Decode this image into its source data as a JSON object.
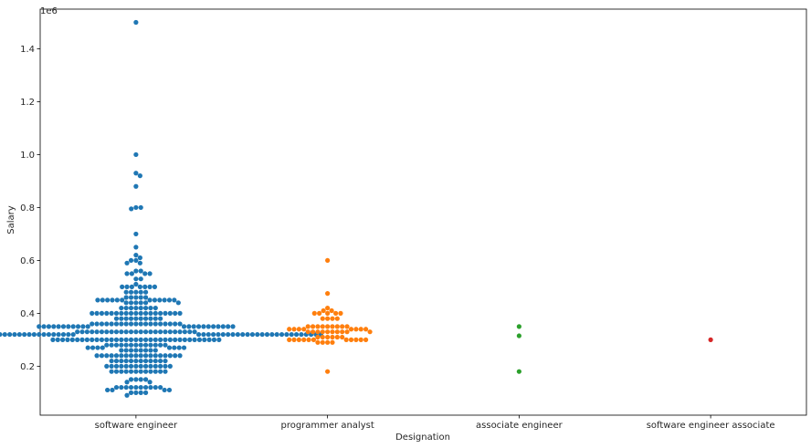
{
  "chart_data": {
    "type": "scatter",
    "subtype": "swarm",
    "title": "",
    "xlabel": "Designation",
    "ylabel": "Salary",
    "y_offset_label": "1e6",
    "ylim": [
      15000,
      1550000
    ],
    "yticks": [
      {
        "value": 200000,
        "label": "0.2"
      },
      {
        "value": 400000,
        "label": "0.4"
      },
      {
        "value": 600000,
        "label": "0.6"
      },
      {
        "value": 800000,
        "label": "0.8"
      },
      {
        "value": 1000000,
        "label": "1.0"
      },
      {
        "value": 1200000,
        "label": "1.2"
      },
      {
        "value": 1400000,
        "label": "1.4"
      }
    ],
    "grid": false,
    "legend": "none",
    "categories": [
      "software engineer",
      "programmer analyst",
      "associate engineer",
      "software engineer associate"
    ],
    "colors": [
      "#1f77b4",
      "#ff7f0e",
      "#2ca02c",
      "#d62728"
    ],
    "series": [
      {
        "category": "software engineer",
        "values": [
          1500000,
          1000000,
          930000,
          920000,
          880000,
          800000,
          800000,
          795000,
          700000,
          650000,
          620000,
          610000,
          600000,
          600000,
          590000,
          590000,
          560000,
          560000,
          550000,
          550000,
          550000,
          550000,
          530000,
          530000,
          510000,
          500000,
          500000,
          500000,
          500000,
          500000,
          500000,
          500000,
          480000,
          480000,
          480000,
          480000,
          480000,
          460000,
          460000,
          460000,
          460000,
          460000,
          450000,
          450000,
          450000,
          450000,
          450000,
          450000,
          450000,
          450000,
          450000,
          450000,
          450000,
          450000,
          440000,
          440000,
          440000,
          440000,
          440000,
          440000,
          420000,
          420000,
          420000,
          420000,
          420000,
          420000,
          420000,
          420000,
          400000,
          400000,
          400000,
          400000,
          400000,
          400000,
          400000,
          400000,
          400000,
          400000,
          400000,
          400000,
          400000,
          400000,
          400000,
          400000,
          400000,
          400000,
          400000,
          380000,
          380000,
          380000,
          380000,
          380000,
          380000,
          380000,
          380000,
          380000,
          380000,
          360000,
          360000,
          360000,
          360000,
          360000,
          360000,
          360000,
          360000,
          360000,
          360000,
          360000,
          360000,
          360000,
          360000,
          360000,
          360000,
          360000,
          360000,
          360000,
          350000,
          350000,
          350000,
          350000,
          350000,
          350000,
          350000,
          350000,
          350000,
          350000,
          350000,
          350000,
          350000,
          350000,
          350000,
          350000,
          350000,
          350000,
          350000,
          350000,
          350000,
          350000,
          330000,
          330000,
          330000,
          330000,
          330000,
          330000,
          330000,
          330000,
          330000,
          330000,
          330000,
          330000,
          330000,
          330000,
          330000,
          330000,
          330000,
          330000,
          330000,
          330000,
          330000,
          330000,
          330000,
          330000,
          330000,
          320000,
          320000,
          320000,
          320000,
          320000,
          320000,
          320000,
          320000,
          320000,
          320000,
          320000,
          320000,
          320000,
          320000,
          320000,
          320000,
          320000,
          320000,
          320000,
          320000,
          320000,
          320000,
          320000,
          320000,
          320000,
          320000,
          320000,
          320000,
          320000,
          320000,
          320000,
          320000,
          320000,
          320000,
          320000,
          320000,
          320000,
          320000,
          320000,
          320000,
          320000,
          320000,
          320000,
          320000,
          320000,
          320000,
          320000,
          320000,
          320000,
          320000,
          320000,
          300000,
          300000,
          300000,
          300000,
          300000,
          300000,
          300000,
          300000,
          300000,
          300000,
          300000,
          300000,
          300000,
          300000,
          300000,
          300000,
          300000,
          300000,
          300000,
          300000,
          300000,
          300000,
          300000,
          300000,
          300000,
          300000,
          300000,
          300000,
          300000,
          300000,
          300000,
          300000,
          300000,
          300000,
          300000,
          280000,
          280000,
          280000,
          280000,
          280000,
          280000,
          280000,
          280000,
          280000,
          280000,
          280000,
          280000,
          280000,
          270000,
          270000,
          270000,
          270000,
          270000,
          270000,
          270000,
          270000,
          260000,
          260000,
          260000,
          260000,
          260000,
          260000,
          260000,
          260000,
          240000,
          240000,
          240000,
          240000,
          240000,
          240000,
          240000,
          240000,
          240000,
          240000,
          240000,
          240000,
          240000,
          240000,
          240000,
          240000,
          240000,
          240000,
          220000,
          220000,
          220000,
          220000,
          220000,
          220000,
          220000,
          220000,
          220000,
          220000,
          220000,
          220000,
          200000,
          200000,
          200000,
          200000,
          200000,
          200000,
          200000,
          200000,
          200000,
          200000,
          200000,
          200000,
          200000,
          200000,
          180000,
          180000,
          180000,
          180000,
          180000,
          180000,
          180000,
          180000,
          180000,
          180000,
          180000,
          180000,
          150000,
          150000,
          150000,
          150000,
          140000,
          140000,
          120000,
          120000,
          120000,
          120000,
          120000,
          120000,
          120000,
          120000,
          120000,
          120000,
          110000,
          110000,
          110000,
          110000,
          100000,
          100000,
          100000,
          100000,
          90000
        ]
      },
      {
        "category": "programmer analyst",
        "values": [
          600000,
          475000,
          420000,
          410000,
          410000,
          400000,
          400000,
          400000,
          400000,
          400000,
          380000,
          380000,
          380000,
          380000,
          350000,
          350000,
          350000,
          350000,
          350000,
          350000,
          350000,
          350000,
          350000,
          340000,
          340000,
          340000,
          340000,
          340000,
          340000,
          340000,
          340000,
          330000,
          330000,
          330000,
          330000,
          330000,
          330000,
          330000,
          330000,
          330000,
          330000,
          310000,
          310000,
          310000,
          310000,
          310000,
          310000,
          300000,
          300000,
          300000,
          300000,
          300000,
          300000,
          300000,
          300000,
          300000,
          300000,
          300000,
          290000,
          290000,
          290000,
          290000,
          180000
        ]
      },
      {
        "category": "associate engineer",
        "values": [
          350000,
          315000,
          180000
        ]
      },
      {
        "category": "software engineer associate",
        "values": [
          300000
        ]
      }
    ]
  }
}
